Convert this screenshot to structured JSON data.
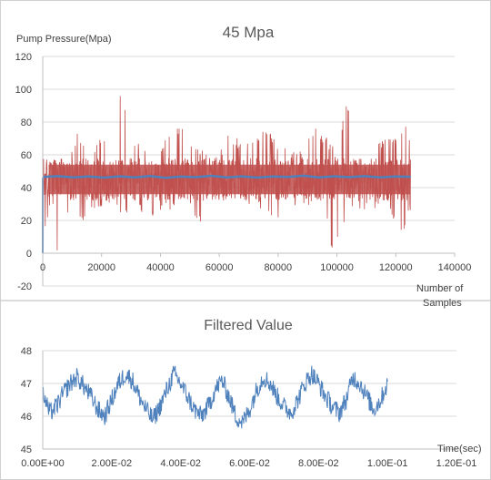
{
  "colors": {
    "raw": "#c0504d",
    "filtered": "#4f81bd",
    "grid": "#d9d9d9",
    "axis": "#bfbfbf",
    "frame": "#d0d0d0"
  },
  "chart_data": [
    {
      "type": "line",
      "title": "45 Mpa",
      "ylabel": "Pump Pressure(Mpa)",
      "xlabel": "Number of Samples",
      "xlim": [
        0,
        140000
      ],
      "ylim": [
        -20,
        120
      ],
      "xticks": [
        "0",
        "20000",
        "40000",
        "60000",
        "80000",
        "100000",
        "120000",
        "140000"
      ],
      "yticks": [
        "120",
        "100",
        "80",
        "60",
        "40",
        "20",
        "0",
        "-20"
      ],
      "grid": true,
      "series": [
        {
          "color": "#c0504d",
          "x_range": [
            0,
            125000
          ],
          "center": 45,
          "typical_band": [
            32,
            58
          ],
          "envelope": [
            [
              0,
              0
            ],
            [
              3000,
              60
            ],
            [
              7000,
              45
            ],
            [
              12000,
              75
            ],
            [
              17000,
              64
            ],
            [
              21000,
              73
            ],
            [
              23000,
              58
            ],
            [
              26000,
              101
            ],
            [
              31000,
              70
            ],
            [
              37000,
              61
            ],
            [
              43000,
              72
            ],
            [
              47000,
              78
            ],
            [
              52000,
              66
            ],
            [
              58000,
              57
            ],
            [
              63000,
              72
            ],
            [
              70000,
              68
            ],
            [
              75000,
              78
            ],
            [
              80000,
              69
            ],
            [
              84000,
              62
            ],
            [
              88000,
              62
            ],
            [
              93000,
              78
            ],
            [
              97000,
              70
            ],
            [
              100000,
              62
            ],
            [
              103000,
              92
            ],
            [
              109000,
              75
            ],
            [
              115000,
              70
            ],
            [
              120000,
              71
            ],
            [
              124000,
              85
            ],
            [
              125000,
              60
            ]
          ],
          "envelope_low": [
            [
              0,
              0
            ],
            [
              3000,
              32
            ],
            [
              5000,
              -2
            ],
            [
              9000,
              29
            ],
            [
              14000,
              17
            ],
            [
              19000,
              27
            ],
            [
              23000,
              31
            ],
            [
              28000,
              20
            ],
            [
              31000,
              30
            ],
            [
              35000,
              20
            ],
            [
              42000,
              25
            ],
            [
              48000,
              31
            ],
            [
              53000,
              17
            ],
            [
              58000,
              30
            ],
            [
              63000,
              32
            ],
            [
              67000,
              25
            ],
            [
              71000,
              29
            ],
            [
              75000,
              26
            ],
            [
              80000,
              18
            ],
            [
              84000,
              33
            ],
            [
              87000,
              25
            ],
            [
              91000,
              28
            ],
            [
              96000,
              28
            ],
            [
              98000,
              1
            ],
            [
              103000,
              20
            ],
            [
              108000,
              27
            ],
            [
              114000,
              26
            ],
            [
              118000,
              28
            ],
            [
              121000,
              5
            ],
            [
              125000,
              26
            ]
          ]
        },
        {
          "color": "#4f81bd",
          "x_range": [
            0,
            125000
          ],
          "y_values": [
            46.5,
            47.0,
            46.2,
            46.8,
            46.1,
            46.9,
            46.3,
            47.1,
            46.0,
            46.7,
            46.4,
            47.2,
            46.2,
            46.9,
            46.1,
            46.8,
            46.5,
            47.3,
            46.2,
            46.9,
            46.4,
            47.0,
            46.2,
            46.8,
            46.6
          ]
        }
      ]
    },
    {
      "type": "line",
      "title": "Filtered Value",
      "xlabel": "Time(sec)",
      "xlim": [
        0,
        0.12
      ],
      "ylim": [
        45,
        48
      ],
      "xticks": [
        "0.00E+00",
        "2.00E-02",
        "4.00E-02",
        "6.00E-02",
        "8.00E-02",
        "1.00E-01",
        "1.20E-01"
      ],
      "yticks": [
        "48",
        "47",
        "46",
        "45"
      ],
      "grid": true,
      "series": [
        {
          "color": "#4f81bd",
          "x_range": [
            0,
            0.1
          ],
          "points": [
            [
              0.0,
              46.7
            ],
            [
              0.002,
              46.1
            ],
            [
              0.004,
              46.3
            ],
            [
              0.006,
              46.7
            ],
            [
              0.008,
              47.0
            ],
            [
              0.01,
              47.2
            ],
            [
              0.012,
              46.9
            ],
            [
              0.014,
              46.6
            ],
            [
              0.016,
              46.2
            ],
            [
              0.018,
              46.0
            ],
            [
              0.02,
              46.5
            ],
            [
              0.022,
              47.0
            ],
            [
              0.024,
              47.3
            ],
            [
              0.026,
              47.1
            ],
            [
              0.028,
              46.6
            ],
            [
              0.03,
              46.2
            ],
            [
              0.032,
              45.9
            ],
            [
              0.034,
              46.3
            ],
            [
              0.036,
              46.8
            ],
            [
              0.038,
              47.3
            ],
            [
              0.04,
              47.0
            ],
            [
              0.042,
              46.6
            ],
            [
              0.044,
              46.2
            ],
            [
              0.046,
              46.0
            ],
            [
              0.048,
              46.3
            ],
            [
              0.05,
              46.8
            ],
            [
              0.052,
              47.1
            ],
            [
              0.054,
              46.6
            ],
            [
              0.056,
              46.0
            ],
            [
              0.058,
              45.8
            ],
            [
              0.06,
              46.2
            ],
            [
              0.062,
              46.8
            ],
            [
              0.064,
              47.2
            ],
            [
              0.066,
              47.0
            ],
            [
              0.068,
              46.6
            ],
            [
              0.07,
              46.3
            ],
            [
              0.072,
              46.1
            ],
            [
              0.074,
              46.5
            ],
            [
              0.076,
              47.0
            ],
            [
              0.078,
              47.3
            ],
            [
              0.08,
              47.0
            ],
            [
              0.082,
              46.6
            ],
            [
              0.084,
              46.3
            ],
            [
              0.086,
              46.1
            ],
            [
              0.088,
              46.5
            ],
            [
              0.09,
              47.2
            ],
            [
              0.092,
              47.0
            ],
            [
              0.094,
              46.6
            ],
            [
              0.096,
              46.2
            ],
            [
              0.098,
              46.5
            ],
            [
              0.1,
              47.0
            ]
          ]
        }
      ]
    }
  ]
}
